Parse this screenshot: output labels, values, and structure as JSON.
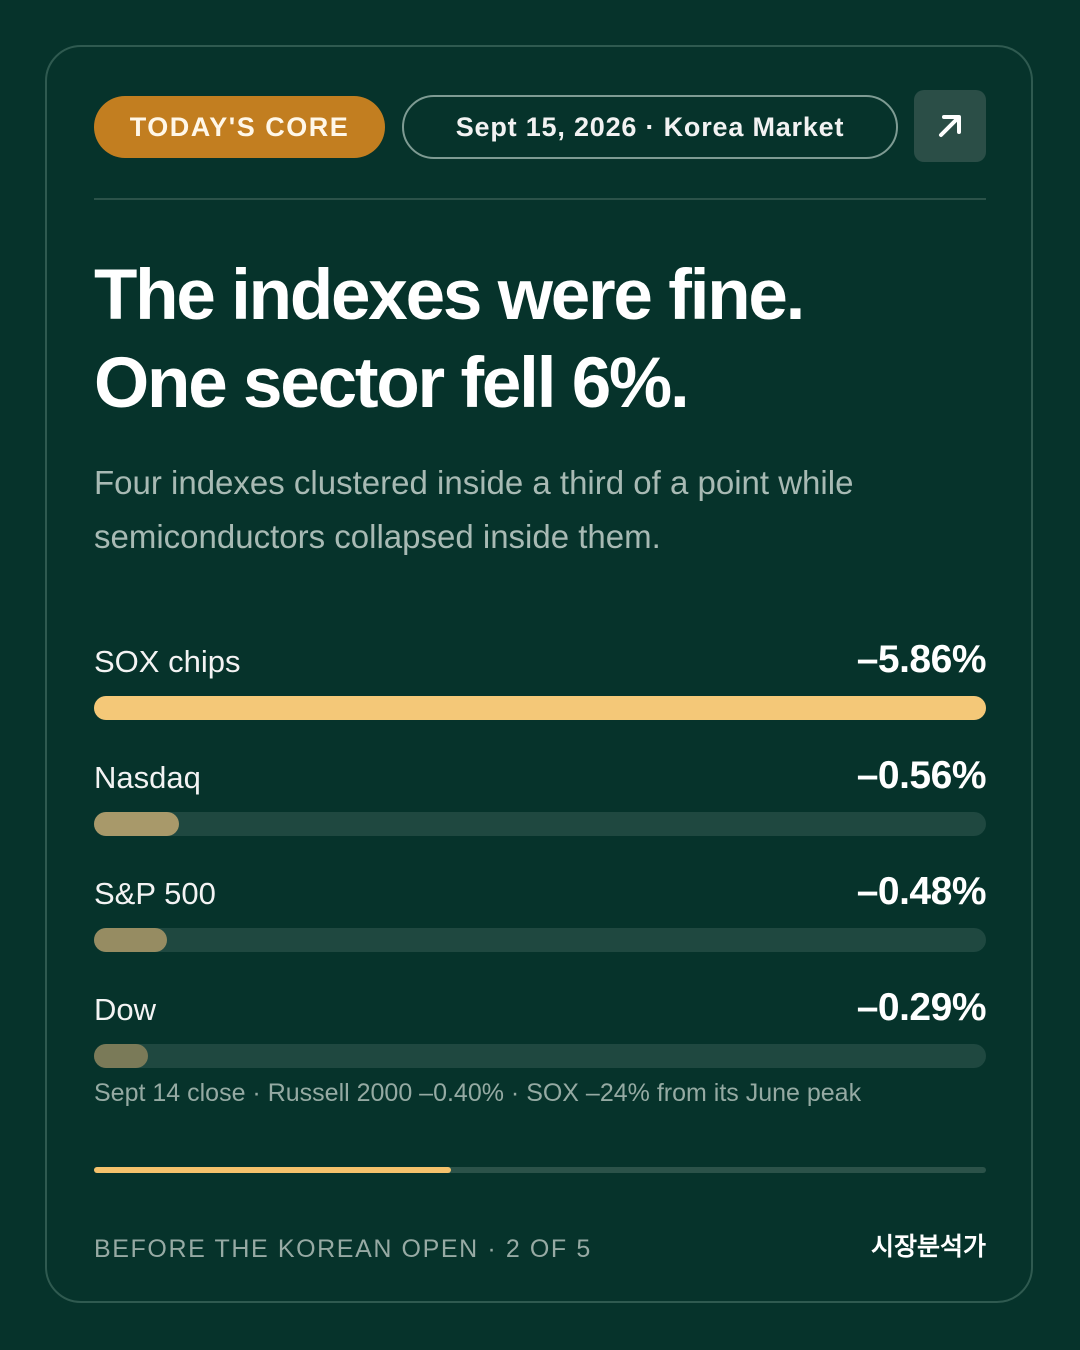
{
  "header": {
    "badge": "TODAY'S CORE",
    "date_pill": "Sept 15, 2026 · Korea Market",
    "open_icon": "arrow-up-right-icon"
  },
  "headline": {
    "line1": "The indexes were fine.",
    "line2": "One sector fell 6%."
  },
  "subtitle": {
    "line1": "Four indexes clustered inside a third of a point while",
    "line2": "semiconductors collapsed inside them."
  },
  "chart_data": {
    "type": "bar",
    "categories": [
      "SOX chips",
      "Nasdaq",
      "S&P 500",
      "Dow"
    ],
    "values": [
      -5.86,
      -0.56,
      -0.48,
      -0.29
    ],
    "value_labels": [
      "–5.86%",
      "–0.56%",
      "–0.48%",
      "–0.29%"
    ],
    "colors": [
      "#f4c878",
      "#a8996a",
      "#968c62",
      "#7a7a58"
    ],
    "track_color": "#1f4840"
  },
  "footnote": "Sept 14 close · Russell 2000 –0.40% · SOX –24% from its June peak",
  "progress": {
    "current": 2,
    "total": 5,
    "fraction": 0.4
  },
  "footer": {
    "left": "BEFORE THE KOREAN OPEN · 2 OF 5",
    "right": "시장분석가"
  },
  "colors": {
    "background": "#06332b",
    "accent": "#c27e20",
    "highlight": "#f4c26c"
  }
}
